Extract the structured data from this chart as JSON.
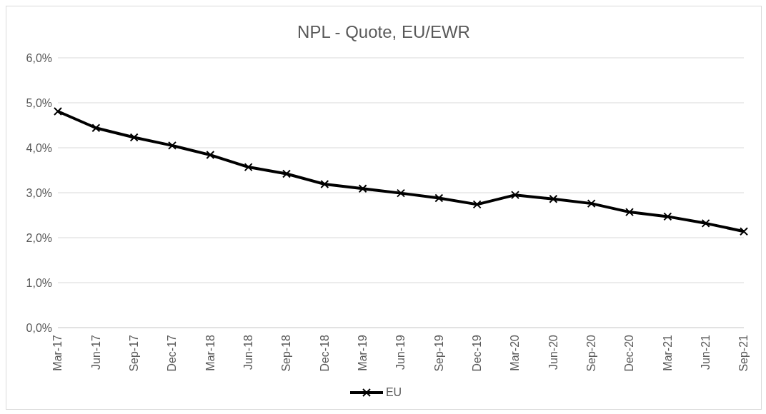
{
  "chart_data": {
    "type": "line",
    "title": "NPL - Quote, EU/EWR",
    "categories": [
      "Mar-17",
      "Jun-17",
      "Sep-17",
      "Dec-17",
      "Mar-18",
      "Jun-18",
      "Sep-18",
      "Dec-18",
      "Mar-19",
      "Jun-19",
      "Sep-19",
      "Dec-19",
      "Mar-20",
      "Jun-20",
      "Sep-20",
      "Dec-20",
      "Mar-21",
      "Jun-21",
      "Sep-21"
    ],
    "series": [
      {
        "name": "EU",
        "color": "#000000",
        "values": [
          4.81,
          4.44,
          4.23,
          4.05,
          3.84,
          3.57,
          3.42,
          3.19,
          3.09,
          2.99,
          2.88,
          2.74,
          2.95,
          2.86,
          2.76,
          2.57,
          2.47,
          2.32,
          2.14
        ]
      }
    ],
    "ylim": [
      0,
      6
    ],
    "yticks": [
      {
        "value": 0,
        "label": "0,0%"
      },
      {
        "value": 1,
        "label": "1,0%"
      },
      {
        "value": 2,
        "label": "2,0%"
      },
      {
        "value": 3,
        "label": "3,0%"
      },
      {
        "value": 4,
        "label": "4,0%"
      },
      {
        "value": 5,
        "label": "5,0%"
      },
      {
        "value": 6,
        "label": "6,0%"
      }
    ],
    "grid": "y",
    "legend": "bottom",
    "marker": "cross",
    "line_style": "solid"
  }
}
